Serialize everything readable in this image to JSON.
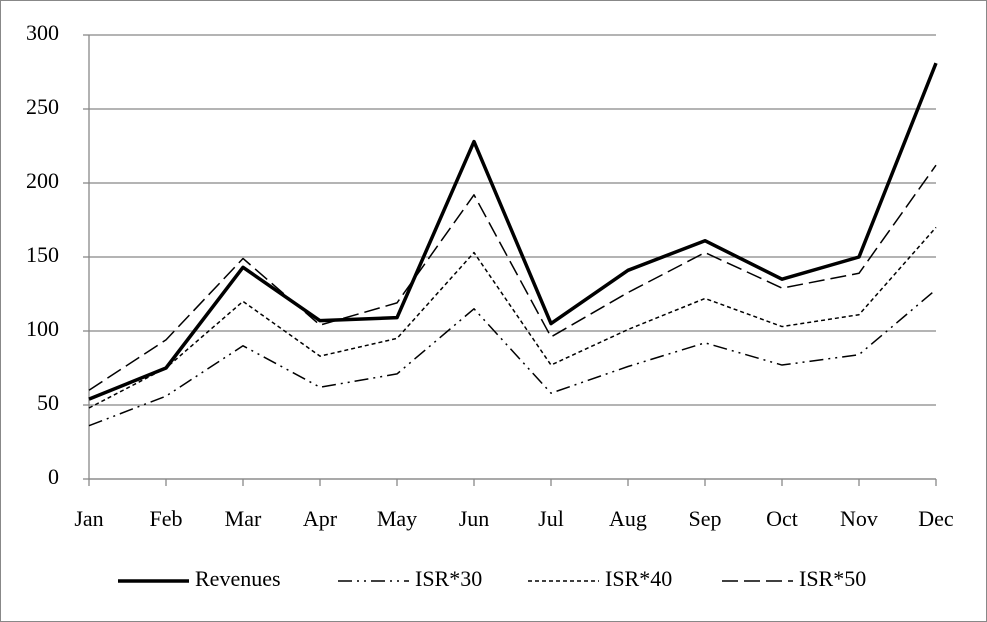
{
  "chart_data": {
    "type": "line",
    "categories": [
      "Jan",
      "Feb",
      "Mar",
      "Apr",
      "May",
      "Jun",
      "Jul",
      "Aug",
      "Sep",
      "Oct",
      "Nov",
      "Dec"
    ],
    "series": [
      {
        "name": "Revenues",
        "color": "#000000",
        "dash": "solid",
        "line_width": 3.5,
        "values": [
          54,
          75,
          143,
          107,
          109,
          228,
          105,
          141,
          161,
          135,
          150,
          281
        ]
      },
      {
        "name": "ISR*30",
        "color": "#000000",
        "dash": "dash-dot-dot",
        "line_width": 1.5,
        "values": [
          36,
          56,
          90,
          62,
          71,
          115,
          58,
          76,
          92,
          77,
          84,
          128
        ]
      },
      {
        "name": "ISR*40",
        "color": "#000000",
        "dash": "dot",
        "line_width": 1.5,
        "values": [
          48,
          75,
          120,
          83,
          95,
          153,
          77,
          101,
          122,
          103,
          111,
          170
        ]
      },
      {
        "name": "ISR*50",
        "color": "#000000",
        "dash": "dash",
        "line_width": 1.5,
        "values": [
          60,
          94,
          149,
          104,
          119,
          192,
          96,
          126,
          153,
          129,
          139,
          212
        ]
      }
    ],
    "ylim": [
      0,
      300
    ],
    "yticks": [
      0,
      50,
      100,
      150,
      200,
      250,
      300
    ],
    "grid": true,
    "legend": "bottom"
  }
}
